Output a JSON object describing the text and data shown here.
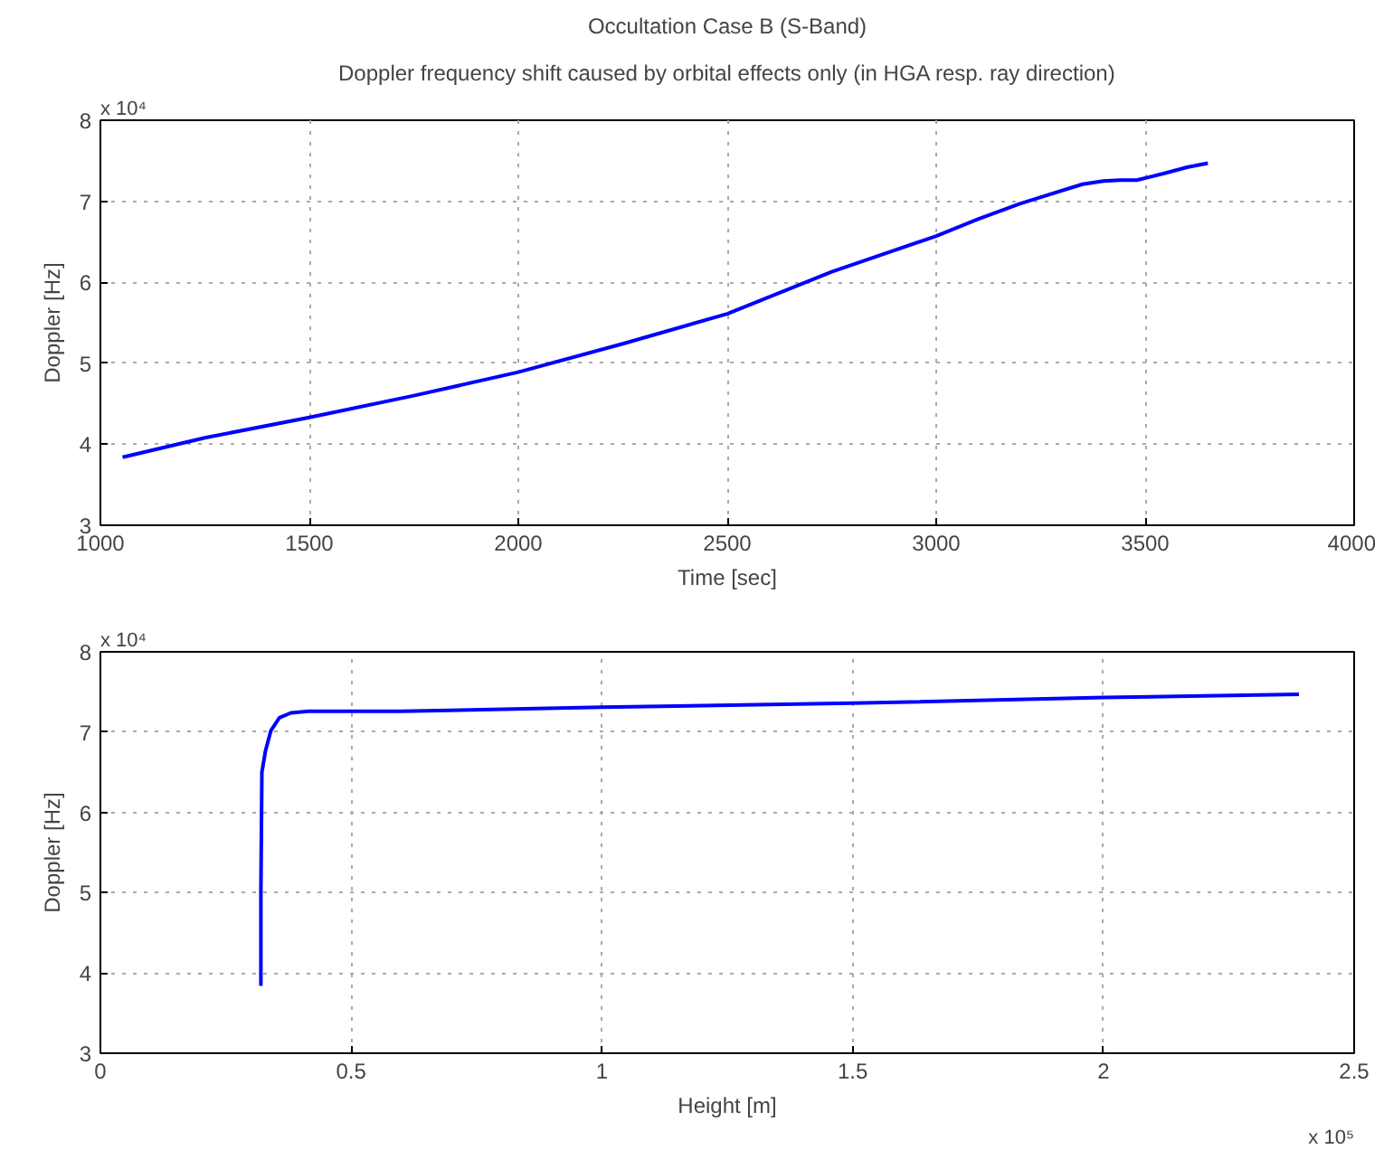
{
  "chart_data": [
    {
      "type": "line",
      "title": "Occultation Case B (S-Band)",
      "subtitle": "Doppler frequency shift caused by orbital effects only (in HGA resp. ray direction)",
      "xlabel": "Time [sec]",
      "ylabel": "Doppler [Hz]",
      "annotations": [
        "x 10⁴"
      ],
      "x": [
        1053,
        1250,
        1500,
        1750,
        2000,
        2250,
        2500,
        2750,
        3000,
        3100,
        3200,
        3250,
        3350,
        3400,
        3440,
        3480,
        3550,
        3600,
        3650
      ],
      "series": [
        {
          "color": "#0000ff",
          "values": [
            3.84,
            4.08,
            4.33,
            4.6,
            4.89,
            5.24,
            5.61,
            6.13,
            6.57,
            6.78,
            6.97,
            7.05,
            7.21,
            7.25,
            7.26,
            7.26,
            7.35,
            7.42,
            7.47
          ]
        }
      ],
      "xlim": [
        1000,
        4000
      ],
      "xticks": [
        1000,
        1500,
        2000,
        2500,
        3000,
        3500,
        4000
      ],
      "ylim": [
        3,
        8
      ],
      "yticks": [
        3,
        4,
        5,
        6,
        7,
        8
      ],
      "grid": true,
      "marker": "none",
      "line_style": "solid"
    },
    {
      "type": "line",
      "xlabel": "Height [m]",
      "ylabel": "Doppler [Hz]",
      "annotations": [
        "x 10⁴",
        "x 10⁵"
      ],
      "x": [
        0.32,
        0.32,
        0.322,
        0.329,
        0.34,
        0.357,
        0.38,
        0.415,
        0.6,
        1.0,
        1.5,
        2.0,
        2.39
      ],
      "series": [
        {
          "color": "#0000ff",
          "values": [
            3.84,
            5.0,
            6.5,
            6.76,
            7.02,
            7.18,
            7.24,
            7.26,
            7.26,
            7.31,
            7.36,
            7.43,
            7.47
          ]
        }
      ],
      "xlim": [
        0,
        2.5
      ],
      "xticks": [
        0,
        0.5,
        1,
        1.5,
        2,
        2.5
      ],
      "ylim": [
        3,
        8
      ],
      "yticks": [
        3,
        4,
        5,
        6,
        7,
        8
      ],
      "grid": true,
      "marker": "none",
      "line_style": "solid"
    }
  ]
}
